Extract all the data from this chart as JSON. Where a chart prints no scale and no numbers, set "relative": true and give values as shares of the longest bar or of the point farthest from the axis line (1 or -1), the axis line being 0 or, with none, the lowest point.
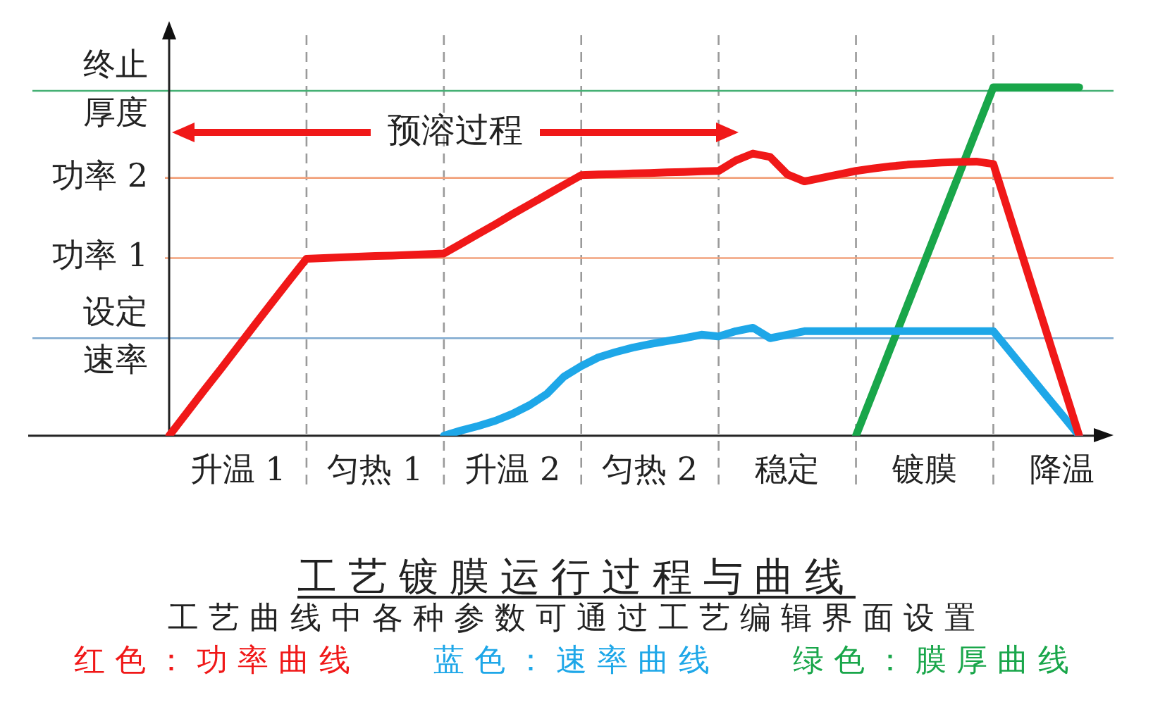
{
  "chart_data": {
    "type": "line",
    "title": "工艺镀膜运行过程与曲线",
    "subtitle": "工艺曲线中各种参数可通过工艺编辑界面设置",
    "relative": true,
    "legend": "bottom",
    "marker": "none",
    "categories": [
      null,
      null,
      null,
      null,
      "升温 1",
      null,
      null,
      null,
      null,
      null,
      null,
      null,
      "匀热 1",
      null,
      null,
      null,
      null,
      null,
      null,
      null,
      "升温 2",
      null,
      null,
      null,
      null,
      null,
      null,
      null,
      "匀热 2",
      null,
      null,
      null,
      null,
      null,
      null,
      null,
      "稳定",
      null,
      null,
      null,
      null,
      null,
      null,
      null,
      "镀膜",
      null,
      null,
      null,
      null,
      null,
      null,
      null,
      "降温",
      null,
      null,
      null
    ],
    "series": [
      {
        "name": "红色：功率曲线",
        "color": "#f01818",
        "values": [
          0,
          0.064,
          0.128,
          0.191,
          0.255,
          0.319,
          0.383,
          0.446,
          0.508,
          0.51,
          0.512,
          0.514,
          0.516,
          0.517,
          0.519,
          0.521,
          0.523,
          0.551,
          0.579,
          0.607,
          0.636,
          0.664,
          0.692,
          0.72,
          0.748,
          0.75,
          0.751,
          0.753,
          0.754,
          0.756,
          0.757,
          0.759,
          0.76,
          0.79,
          0.81,
          0.8,
          0.75,
          0.73,
          0.74,
          0.75,
          0.76,
          0.767,
          0.773,
          0.778,
          0.781,
          0.784,
          0.786,
          0.787,
          0.78,
          0.624,
          0.468,
          0.312,
          0.156,
          0,
          null,
          null
        ]
      },
      {
        "name": "蓝色：速率曲线",
        "color": "#1ea7e8",
        "values": [
          null,
          null,
          null,
          null,
          null,
          null,
          null,
          null,
          null,
          null,
          null,
          null,
          null,
          null,
          null,
          null,
          0,
          0.015,
          0.028,
          0.043,
          0.063,
          0.088,
          0.12,
          0.17,
          0.2,
          0.225,
          0.24,
          0.253,
          0.263,
          0.272,
          0.28,
          0.29,
          0.285,
          0.3,
          0.31,
          0.28,
          0.29,
          0.3,
          0.3,
          0.3,
          0.3,
          0.3,
          0.3,
          0.3,
          0.3,
          0.3,
          0.3,
          0.3,
          0.3,
          0.24,
          0.18,
          0.12,
          0.06,
          0,
          null,
          null
        ]
      },
      {
        "name": "绿色：膜厚曲线",
        "color": "#19a64a",
        "values": [
          null,
          null,
          null,
          null,
          null,
          null,
          null,
          null,
          null,
          null,
          null,
          null,
          null,
          null,
          null,
          null,
          null,
          null,
          null,
          null,
          null,
          null,
          null,
          null,
          null,
          null,
          null,
          null,
          null,
          null,
          null,
          null,
          null,
          null,
          null,
          null,
          null,
          null,
          null,
          null,
          0,
          0.125,
          0.25,
          0.375,
          0.5,
          0.625,
          0.75,
          0.875,
          1,
          1,
          1,
          1,
          1,
          1,
          null,
          null
        ]
      }
    ],
    "ref_lines": [
      {
        "axis": "y",
        "value": 0.99,
        "label": "终止厚度",
        "color": "#45b074"
      },
      {
        "axis": "y",
        "value": 0.74,
        "label": "功率 2",
        "color": "#f2a27c"
      },
      {
        "axis": "y",
        "value": 0.51,
        "label": "功率 1",
        "color": "#f2a27c"
      },
      {
        "axis": "y",
        "value": 0.28,
        "label": "设定速率",
        "color": "#7fa9cf"
      }
    ],
    "annotations": [
      "预溶过程"
    ]
  }
}
